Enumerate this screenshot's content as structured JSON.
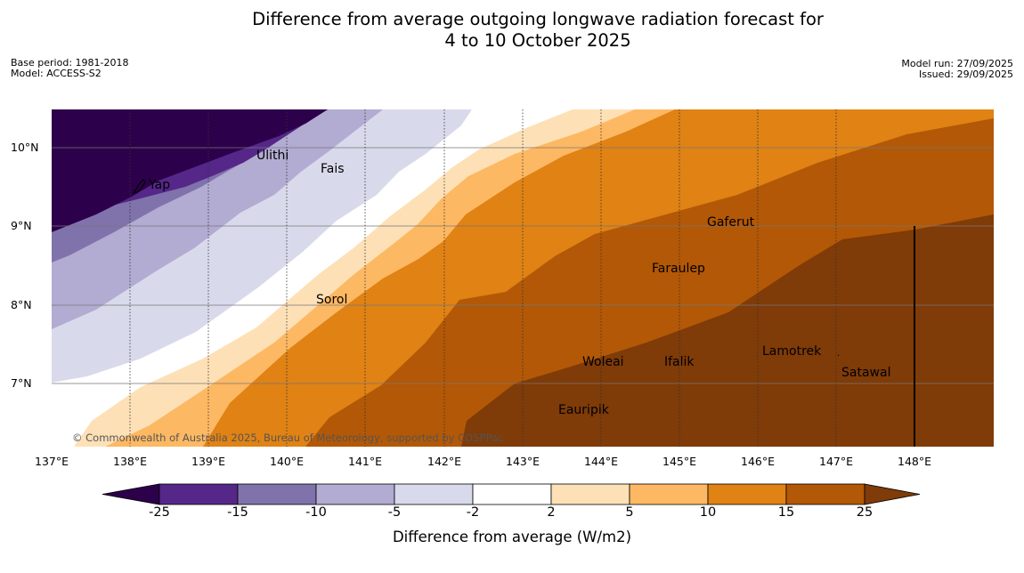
{
  "title": {
    "line1": "Difference from average outgoing longwave radiation forecast for",
    "line2": "4 to 10 October 2025"
  },
  "meta_left": {
    "base_period": "Base period: 1981-2018",
    "model": "Model: ACCESS-S2"
  },
  "meta_right": {
    "model_run": "Model run: 27/09/2025",
    "issued": "Issued: 29/09/2025"
  },
  "map": {
    "lat_labels": [
      "10°N",
      "9°N",
      "8°N",
      "7°N"
    ],
    "lon_labels": [
      "137°E",
      "138°E",
      "139°E",
      "140°E",
      "141°E",
      "142°E",
      "143°E",
      "144°E",
      "145°E",
      "146°E",
      "147°E",
      "148°E"
    ],
    "places": [
      {
        "name": "Ulithi"
      },
      {
        "name": "Fais"
      },
      {
        "name": "Yap"
      },
      {
        "name": "Gaferut"
      },
      {
        "name": "Faraulep"
      },
      {
        "name": "Sorol"
      },
      {
        "name": "Woleai"
      },
      {
        "name": "Ifalik"
      },
      {
        "name": "Lamotrek"
      },
      {
        "name": "Satawal"
      },
      {
        "name": "Eauripik"
      }
    ],
    "copyright": "© Commonwealth of Australia 2025, Bureau of Meteorology, supported by COSPPac"
  },
  "colorbar": {
    "ticks": [
      "-25",
      "-15",
      "-10",
      "-5",
      "-2",
      "2",
      "5",
      "10",
      "15",
      "25"
    ],
    "label": "Difference from average (W/m2)",
    "colors": [
      "#2d004b",
      "#542788",
      "#8073ac",
      "#b2abd2",
      "#d8daeb",
      "#ffffff",
      "#fee0b6",
      "#fdb863",
      "#e08214",
      "#b35806",
      "#7f3b08"
    ]
  }
}
